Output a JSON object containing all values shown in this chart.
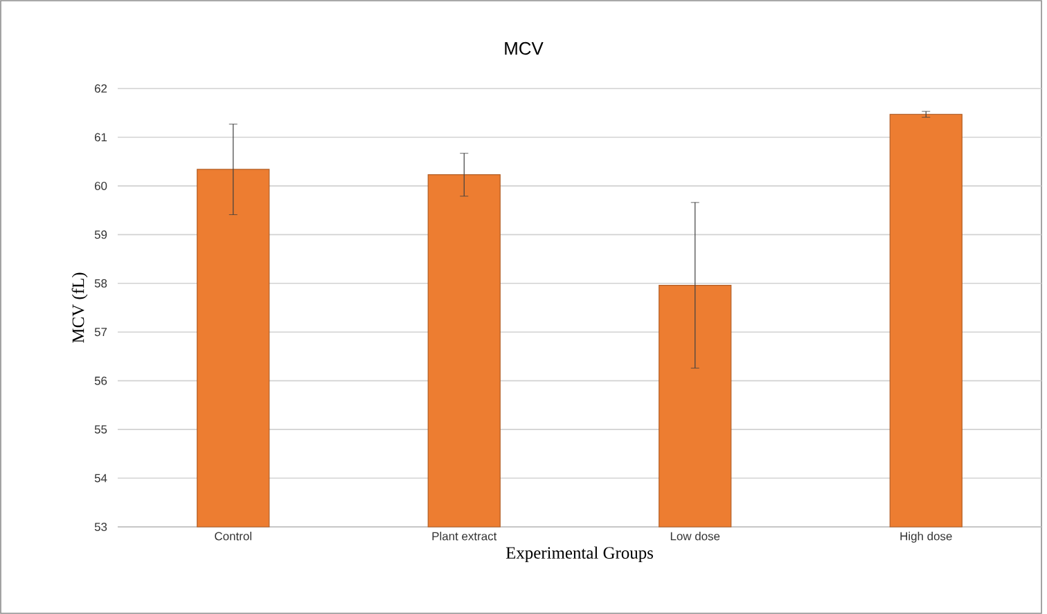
{
  "chart_data": {
    "type": "bar",
    "title": "MCV",
    "xlabel": "Experimental Groups",
    "ylabel": "MCV (fL)",
    "categories": [
      "Control",
      "Plant extract",
      "Low dose",
      "High dose"
    ],
    "values": [
      60.34,
      60.23,
      57.96,
      61.47
    ],
    "errors": [
      0.93,
      0.44,
      1.7,
      0.06
    ],
    "color": "#ed7d31",
    "ylim": [
      53,
      62
    ],
    "yticks": [
      53,
      54,
      55,
      56,
      57,
      58,
      59,
      60,
      61,
      62
    ],
    "grid": "y"
  }
}
